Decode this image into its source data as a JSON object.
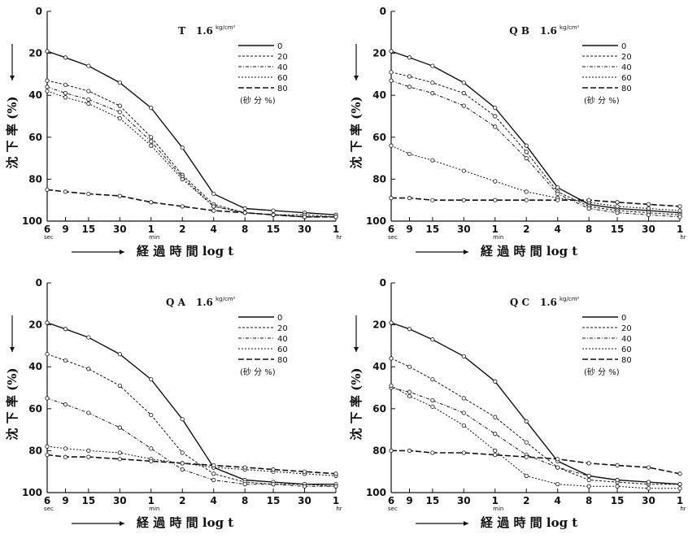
{
  "chart_data": [
    {
      "type": "line",
      "title": "T",
      "pressure": "1.6",
      "pressure_unit": "kg/cm²",
      "ylabel": "沈 下 率 (%)",
      "xlabel": "経 過 時 間  log t",
      "ylim": [
        0,
        100
      ],
      "y_ticks": [
        "0",
        "20",
        "40",
        "60",
        "80",
        "100"
      ],
      "x_ticks": [
        "6",
        "9",
        "15",
        "30",
        "1",
        "2",
        "4",
        "8",
        "15",
        "30",
        "1"
      ],
      "x_units": {
        "sec": "sec",
        "min": "min",
        "hr": "hr"
      },
      "x": [
        "6 sec",
        "9 sec",
        "15 sec",
        "30 sec",
        "1 min",
        "2 min",
        "4 min",
        "8 min",
        "15 min",
        "30 min",
        "1 hr"
      ],
      "legend_title": "(砂 分 %)",
      "series": [
        {
          "name": "0",
          "values": [
            19,
            22,
            26,
            34,
            46,
            65,
            87,
            94,
            95,
            96,
            97
          ]
        },
        {
          "name": "20",
          "values": [
            33,
            35,
            38,
            45,
            60,
            78,
            92,
            96,
            97,
            97,
            98
          ]
        },
        {
          "name": "40",
          "values": [
            36,
            39,
            42,
            48,
            62,
            79,
            93,
            96,
            97,
            98,
            98
          ]
        },
        {
          "name": "60",
          "values": [
            38,
            41,
            44,
            51,
            64,
            80,
            93,
            96,
            97,
            98,
            98
          ]
        },
        {
          "name": "80",
          "values": [
            85,
            86,
            87,
            88,
            91,
            93,
            95,
            96,
            97,
            98,
            98
          ]
        }
      ]
    },
    {
      "type": "line",
      "title": "Q B",
      "pressure": "1.6",
      "pressure_unit": "kg/cm²",
      "ylabel": "沈 下 率 (%)",
      "xlabel": "経 過 時 間  log t",
      "ylim": [
        0,
        100
      ],
      "y_ticks": [
        "0",
        "20",
        "40",
        "60",
        "80",
        "100"
      ],
      "x_ticks": [
        "6",
        "9",
        "15",
        "30",
        "1",
        "2",
        "4",
        "8",
        "15",
        "30",
        "1"
      ],
      "x_units": {
        "sec": "sec",
        "min": "min",
        "hr": "hr"
      },
      "x": [
        "6 sec",
        "9 sec",
        "15 sec",
        "30 sec",
        "1 min",
        "2 min",
        "4 min",
        "8 min",
        "15 min",
        "30 min",
        "1 hr"
      ],
      "legend_title": "(砂 分 %)",
      "series": [
        {
          "name": "0",
          "values": [
            19,
            22,
            26,
            34,
            46,
            64,
            84,
            92,
            94,
            95,
            96
          ]
        },
        {
          "name": "20",
          "values": [
            29,
            31,
            34,
            39,
            50,
            67,
            86,
            93,
            95,
            96,
            97
          ]
        },
        {
          "name": "40",
          "values": [
            33,
            36,
            39,
            45,
            55,
            70,
            87,
            94,
            96,
            97,
            98
          ]
        },
        {
          "name": "60",
          "values": [
            64,
            68,
            71,
            76,
            81,
            86,
            89,
            91,
            93,
            94,
            95
          ]
        },
        {
          "name": "80",
          "values": [
            89,
            89,
            90,
            90,
            90,
            90,
            90,
            90,
            91,
            92,
            93
          ]
        }
      ]
    },
    {
      "type": "line",
      "title": "Q A",
      "pressure": "1.6",
      "pressure_unit": "kg/cm²",
      "ylabel": "沈 下 率 (%)",
      "xlabel": "経 過 時 間  log t",
      "ylim": [
        0,
        100
      ],
      "y_ticks": [
        "0",
        "20",
        "40",
        "60",
        "80",
        "100"
      ],
      "x_ticks": [
        "6",
        "9",
        "15",
        "30",
        "1",
        "2",
        "4",
        "8",
        "15",
        "30",
        "1"
      ],
      "x_units": {
        "sec": "sec",
        "min": "min",
        "hr": "hr"
      },
      "x": [
        "6 sec",
        "9 sec",
        "15 sec",
        "30 sec",
        "1 min",
        "2 min",
        "4 min",
        "8 min",
        "15 min",
        "30 min",
        "1 hr"
      ],
      "legend_title": "(砂 分 %)",
      "series": [
        {
          "name": "0",
          "values": [
            19,
            22,
            26,
            34,
            46,
            65,
            88,
            94,
            95,
            96,
            96
          ]
        },
        {
          "name": "20",
          "values": [
            34,
            37,
            41,
            49,
            63,
            81,
            91,
            95,
            96,
            96,
            97
          ]
        },
        {
          "name": "40",
          "values": [
            55,
            58,
            62,
            69,
            79,
            89,
            94,
            96,
            96,
            97,
            97
          ]
        },
        {
          "name": "60",
          "values": [
            78,
            79,
            80,
            81,
            84,
            86,
            88,
            89,
            90,
            91,
            92
          ]
        },
        {
          "name": "80",
          "values": [
            82,
            83,
            83,
            84,
            85,
            86,
            87,
            88,
            89,
            90,
            91
          ]
        }
      ]
    },
    {
      "type": "line",
      "title": "Q C",
      "pressure": "1.6",
      "pressure_unit": "kg/cm²",
      "ylabel": "沈 下 率 (%)",
      "xlabel": "経 過 時 間  log t",
      "ylim": [
        0,
        100
      ],
      "y_ticks": [
        "0",
        "20",
        "40",
        "60",
        "80",
        "100"
      ],
      "x_ticks": [
        "6",
        "9",
        "15",
        "30",
        "1",
        "2",
        "4",
        "8",
        "15",
        "30",
        "1"
      ],
      "x_units": {
        "sec": "sec",
        "min": "min",
        "hr": "hr"
      },
      "x": [
        "6 sec",
        "9 sec",
        "15 sec",
        "30 sec",
        "1 min",
        "2 min",
        "4 min",
        "8 min",
        "15 min",
        "30 min",
        "1 hr"
      ],
      "legend_title": "(砂 分 %)",
      "series": [
        {
          "name": "0",
          "values": [
            19,
            22,
            27,
            35,
            47,
            66,
            85,
            92,
            94,
            95,
            96
          ]
        },
        {
          "name": "20",
          "values": [
            36,
            40,
            46,
            55,
            64,
            76,
            88,
            94,
            95,
            96,
            96
          ]
        },
        {
          "name": "40",
          "values": [
            50,
            52,
            56,
            62,
            72,
            82,
            88,
            92,
            94,
            95,
            96
          ]
        },
        {
          "name": "60",
          "values": [
            49,
            54,
            59,
            68,
            80,
            92,
            96,
            97,
            97,
            98,
            98
          ]
        },
        {
          "name": "80",
          "values": [
            80,
            80,
            81,
            81,
            82,
            83,
            84,
            86,
            87,
            88,
            91
          ]
        }
      ]
    }
  ]
}
